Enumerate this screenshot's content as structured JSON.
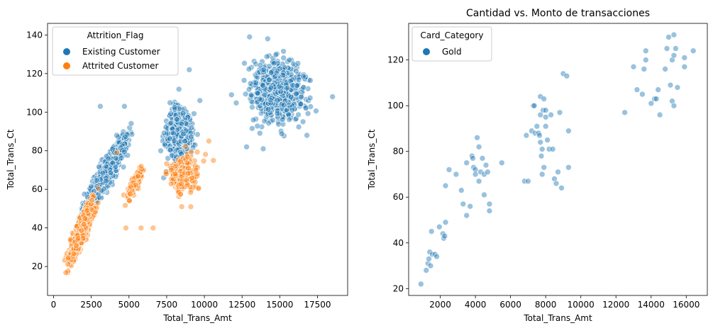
{
  "chart_data": [
    {
      "type": "scatter",
      "title": "",
      "xlabel": "Total_Trans_Amt",
      "ylabel": "Total_Trans_Ct",
      "xlim": [
        -400,
        19500
      ],
      "ylim": [
        5,
        146
      ],
      "xticks": [
        0,
        2500,
        5000,
        7500,
        10000,
        12500,
        15000,
        17500
      ],
      "xtick_labels": [
        "0",
        "2500",
        "5000",
        "7500",
        "10000",
        "12500",
        "15000",
        "17500"
      ],
      "yticks": [
        20,
        40,
        60,
        80,
        100,
        120,
        140
      ],
      "ytick_labels": [
        "20",
        "40",
        "60",
        "80",
        "100",
        "120",
        "140"
      ],
      "grid": false,
      "legend": {
        "title": "Attrition_Flag",
        "placement": "top-left"
      },
      "series": [
        {
          "name": "Existing Customer",
          "color": "#1f77b4",
          "clusters": [
            {
              "x": [
                900,
                2600
              ],
              "y": [
                15,
                65
              ],
              "count": 300
            },
            {
              "x": [
                1800,
                5500
              ],
              "y": [
                40,
                100
              ],
              "count": 950
            },
            {
              "x": [
                6800,
                9800
              ],
              "y": [
                64,
                114
              ],
              "count": 450
            },
            {
              "x": [
                11800,
                17800
              ],
              "y": [
                84,
                138
              ],
              "count": 650
            }
          ],
          "points": [
            {
              "x": 3100,
              "y": 103
            },
            {
              "x": 4700,
              "y": 103
            },
            {
              "x": 9000,
              "y": 122
            },
            {
              "x": 13000,
              "y": 139
            },
            {
              "x": 14200,
              "y": 138
            },
            {
              "x": 18500,
              "y": 108
            },
            {
              "x": 12800,
              "y": 82
            },
            {
              "x": 13900,
              "y": 81
            },
            {
              "x": 16800,
              "y": 88
            },
            {
              "x": 11800,
              "y": 109
            },
            {
              "x": 9700,
              "y": 106
            },
            {
              "x": 7300,
              "y": 66
            }
          ]
        },
        {
          "name": "Attrited Customer",
          "color": "#ff7f0e",
          "clusters": [
            {
              "x": [
                500,
                3200
              ],
              "y": [
                10,
                66
              ],
              "count": 620
            },
            {
              "x": [
                4400,
                6400
              ],
              "y": [
                46,
                80
              ],
              "count": 90
            },
            {
              "x": [
                7000,
                10300
              ],
              "y": [
                50,
                86
              ],
              "count": 200
            }
          ],
          "points": [
            {
              "x": 5800,
              "y": 40
            },
            {
              "x": 6600,
              "y": 40
            },
            {
              "x": 4800,
              "y": 40
            },
            {
              "x": 10300,
              "y": 85
            },
            {
              "x": 10600,
              "y": 75
            },
            {
              "x": 9100,
              "y": 51
            },
            {
              "x": 8500,
              "y": 51
            },
            {
              "x": 4200,
              "y": 79
            }
          ]
        }
      ]
    },
    {
      "type": "scatter",
      "title": "Cantidad vs. Monto de transacciones",
      "xlabel": "Total_Trans_Amt",
      "ylabel": "Total_Trans_Ct",
      "xlim": [
        200,
        17200
      ],
      "ylim": [
        17,
        136
      ],
      "xticks": [
        2000,
        4000,
        6000,
        8000,
        10000,
        12000,
        14000,
        16000
      ],
      "xtick_labels": [
        "2000",
        "4000",
        "6000",
        "8000",
        "10000",
        "12000",
        "14000",
        "16000"
      ],
      "yticks": [
        20,
        40,
        60,
        80,
        100,
        120
      ],
      "ytick_labels": [
        "20",
        "40",
        "60",
        "80",
        "100",
        "120"
      ],
      "grid": false,
      "legend": {
        "title": "Card_Category",
        "placement": "top-left"
      },
      "series": [
        {
          "name": "Gold",
          "color": "#1f77b4",
          "points": [
            {
              "x": 900,
              "y": 22
            },
            {
              "x": 1200,
              "y": 28
            },
            {
              "x": 1300,
              "y": 31
            },
            {
              "x": 1350,
              "y": 33
            },
            {
              "x": 1400,
              "y": 36
            },
            {
              "x": 1450,
              "y": 30
            },
            {
              "x": 1500,
              "y": 45
            },
            {
              "x": 1550,
              "y": 35
            },
            {
              "x": 1700,
              "y": 35
            },
            {
              "x": 1800,
              "y": 34
            },
            {
              "x": 1950,
              "y": 47
            },
            {
              "x": 2150,
              "y": 44
            },
            {
              "x": 2200,
              "y": 42
            },
            {
              "x": 2250,
              "y": 43
            },
            {
              "x": 2300,
              "y": 49
            },
            {
              "x": 2300,
              "y": 65
            },
            {
              "x": 2500,
              "y": 72
            },
            {
              "x": 2900,
              "y": 70
            },
            {
              "x": 3200,
              "y": 63
            },
            {
              "x": 3300,
              "y": 57
            },
            {
              "x": 3500,
              "y": 52
            },
            {
              "x": 3500,
              "y": 75
            },
            {
              "x": 3700,
              "y": 56
            },
            {
              "x": 3800,
              "y": 78
            },
            {
              "x": 3850,
              "y": 77
            },
            {
              "x": 3900,
              "y": 73
            },
            {
              "x": 4000,
              "y": 72
            },
            {
              "x": 4000,
              "y": 70
            },
            {
              "x": 4100,
              "y": 86
            },
            {
              "x": 4200,
              "y": 82
            },
            {
              "x": 4200,
              "y": 67
            },
            {
              "x": 4300,
              "y": 71
            },
            {
              "x": 4400,
              "y": 77
            },
            {
              "x": 4500,
              "y": 70
            },
            {
              "x": 4500,
              "y": 61
            },
            {
              "x": 4600,
              "y": 74
            },
            {
              "x": 4700,
              "y": 71
            },
            {
              "x": 4800,
              "y": 57
            },
            {
              "x": 4800,
              "y": 54
            },
            {
              "x": 5500,
              "y": 75
            },
            {
              "x": 6800,
              "y": 67
            },
            {
              "x": 6900,
              "y": 87
            },
            {
              "x": 7000,
              "y": 67
            },
            {
              "x": 7200,
              "y": 89
            },
            {
              "x": 7300,
              "y": 100
            },
            {
              "x": 7350,
              "y": 100
            },
            {
              "x": 7400,
              "y": 88
            },
            {
              "x": 7500,
              "y": 91
            },
            {
              "x": 7600,
              "y": 88
            },
            {
              "x": 7650,
              "y": 87
            },
            {
              "x": 7700,
              "y": 104
            },
            {
              "x": 7700,
              "y": 96
            },
            {
              "x": 7700,
              "y": 84
            },
            {
              "x": 7750,
              "y": 78
            },
            {
              "x": 7800,
              "y": 70
            },
            {
              "x": 7800,
              "y": 81
            },
            {
              "x": 7850,
              "y": 98
            },
            {
              "x": 7900,
              "y": 103
            },
            {
              "x": 7900,
              "y": 73
            },
            {
              "x": 8000,
              "y": 98
            },
            {
              "x": 8000,
              "y": 95
            },
            {
              "x": 8000,
              "y": 91
            },
            {
              "x": 8100,
              "y": 85
            },
            {
              "x": 8200,
              "y": 81
            },
            {
              "x": 8300,
              "y": 96
            },
            {
              "x": 8400,
              "y": 81
            },
            {
              "x": 8500,
              "y": 68
            },
            {
              "x": 8600,
              "y": 66
            },
            {
              "x": 8700,
              "y": 71
            },
            {
              "x": 8800,
              "y": 97
            },
            {
              "x": 8900,
              "y": 64
            },
            {
              "x": 9000,
              "y": 114
            },
            {
              "x": 9200,
              "y": 113
            },
            {
              "x": 9300,
              "y": 89
            },
            {
              "x": 9300,
              "y": 73
            },
            {
              "x": 12500,
              "y": 97
            },
            {
              "x": 13000,
              "y": 117
            },
            {
              "x": 13200,
              "y": 107
            },
            {
              "x": 13500,
              "y": 105
            },
            {
              "x": 13600,
              "y": 116
            },
            {
              "x": 13700,
              "y": 124
            },
            {
              "x": 13700,
              "y": 120
            },
            {
              "x": 14000,
              "y": 101
            },
            {
              "x": 14200,
              "y": 103
            },
            {
              "x": 14300,
              "y": 103
            },
            {
              "x": 14400,
              "y": 107
            },
            {
              "x": 14500,
              "y": 96
            },
            {
              "x": 14800,
              "y": 116
            },
            {
              "x": 14900,
              "y": 125
            },
            {
              "x": 15000,
              "y": 130
            },
            {
              "x": 15100,
              "y": 109
            },
            {
              "x": 15200,
              "y": 120
            },
            {
              "x": 15200,
              "y": 102
            },
            {
              "x": 15300,
              "y": 131
            },
            {
              "x": 15300,
              "y": 122
            },
            {
              "x": 15300,
              "y": 100
            },
            {
              "x": 15400,
              "y": 125
            },
            {
              "x": 15500,
              "y": 108
            },
            {
              "x": 15900,
              "y": 121
            },
            {
              "x": 15900,
              "y": 117
            },
            {
              "x": 16400,
              "y": 124
            }
          ]
        }
      ]
    }
  ]
}
